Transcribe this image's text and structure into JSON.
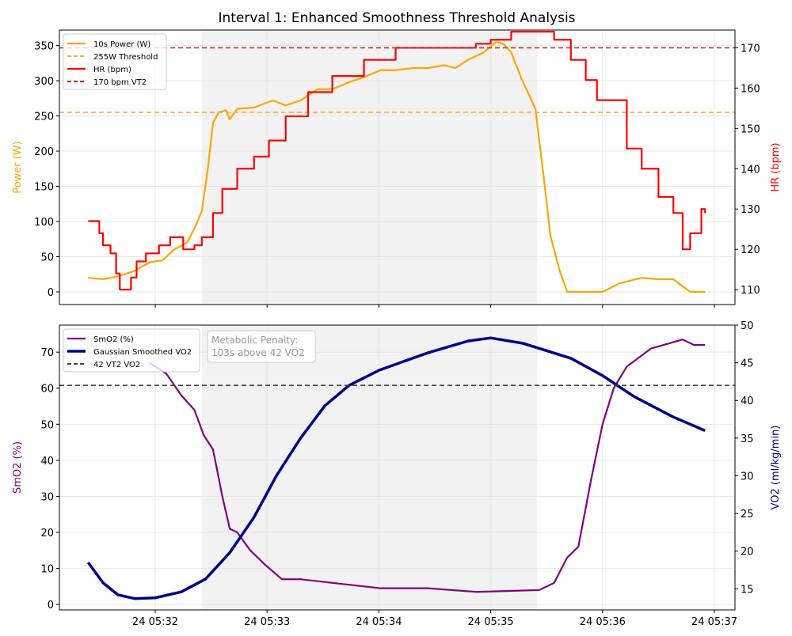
{
  "chart_data": [
    {
      "type": "line",
      "title": "Interval 1: Enhanced Smoothness Threshold Analysis",
      "ylabel": "Power (W)",
      "ylabel_right": "HR (bpm)",
      "ylim": [
        -18,
        372
      ],
      "ylim_right": [
        106.3,
        174.4
      ],
      "yticks": [
        0,
        50,
        100,
        150,
        200,
        250,
        300,
        350
      ],
      "yticks_right": [
        110,
        120,
        130,
        140,
        150,
        160,
        170
      ],
      "grid": true,
      "legend": "top-left",
      "shaded_interval": [
        "05:32:25",
        "05:35:25"
      ],
      "series": [
        {
          "name": "10s Power (W)",
          "axis": "left",
          "color": "#FFA500",
          "x": [
            "05:31:24",
            "05:31:32",
            "05:31:40",
            "05:31:49",
            "05:31:57",
            "05:32:04",
            "05:32:10",
            "05:32:17",
            "05:32:21",
            "05:32:25",
            "05:32:28",
            "05:32:31",
            "05:32:34",
            "05:32:38",
            "05:32:40",
            "05:32:44",
            "05:32:53",
            "05:33:03",
            "05:33:10",
            "05:33:18",
            "05:33:27",
            "05:33:35",
            "05:33:44",
            "05:33:52",
            "05:34:01",
            "05:34:09",
            "05:34:18",
            "05:34:26",
            "05:34:35",
            "05:34:41",
            "05:34:48",
            "05:34:56",
            "05:35:03",
            "05:35:07",
            "05:35:11",
            "05:35:17",
            "05:35:24",
            "05:35:29",
            "05:35:32",
            "05:35:37",
            "05:35:41",
            "05:36:00",
            "05:36:09",
            "05:36:21",
            "05:36:30",
            "05:36:38",
            "05:36:47",
            "05:36:55"
          ],
          "y": [
            20,
            18,
            22,
            30,
            42,
            45,
            60,
            70,
            90,
            115,
            170,
            240,
            255,
            258,
            245,
            260,
            262,
            272,
            265,
            272,
            288,
            288,
            298,
            305,
            315,
            315,
            318,
            318,
            322,
            318,
            330,
            340,
            355,
            352,
            340,
            300,
            260,
            150,
            80,
            30,
            0,
            0,
            12,
            20,
            18,
            18,
            0,
            0
          ]
        },
        {
          "name": "255W Threshold",
          "axis": "left",
          "style": "dashed",
          "color": "#FFAA44",
          "value": 255
        },
        {
          "name": "HR (bpm)",
          "axis": "right",
          "color": "#FF0000",
          "step": true,
          "x": [
            "05:31:24",
            "05:31:30",
            "05:31:32",
            "05:31:36",
            "05:31:39",
            "05:31:41",
            "05:31:44",
            "05:31:47",
            "05:31:50",
            "05:31:55",
            "05:32:02",
            "05:32:08",
            "05:32:12",
            "05:32:15",
            "05:32:21",
            "05:32:25",
            "05:32:31",
            "05:32:36",
            "05:32:44",
            "05:32:53",
            "05:33:01",
            "05:33:10",
            "05:33:22",
            "05:33:35",
            "05:33:52",
            "05:34:09",
            "05:34:52",
            "05:35:00",
            "05:35:11",
            "05:35:26",
            "05:35:34",
            "05:35:43",
            "05:35:51",
            "05:35:57",
            "05:36:13",
            "05:36:21",
            "05:36:30",
            "05:36:38",
            "05:36:43",
            "05:36:47",
            "05:36:53",
            "05:36:55"
          ],
          "y": [
            127,
            124,
            121,
            119,
            114,
            110,
            110,
            113,
            117,
            119,
            121,
            123,
            123,
            120,
            121,
            123,
            129,
            135,
            140,
            143,
            147,
            153,
            159,
            163,
            167,
            170,
            171,
            172,
            174,
            174,
            172,
            167,
            162,
            157,
            145,
            140,
            133,
            129,
            120,
            124,
            130,
            129
          ]
        },
        {
          "name": "170 bpm VT2",
          "axis": "right",
          "style": "dashed",
          "color": "#B03A3A",
          "value": 170
        }
      ]
    },
    {
      "type": "line",
      "ylabel": "SmO2 (%)",
      "ylabel_right": "VO2 (ml/kg/min)",
      "ylim": [
        -1.5,
        77.5
      ],
      "ylim_right": [
        12.2,
        50
      ],
      "yticks": [
        0,
        10,
        20,
        30,
        40,
        50,
        60,
        70
      ],
      "yticks_right": [
        15,
        20,
        25,
        30,
        35,
        40,
        45,
        50
      ],
      "xticks": [
        "24 05:32",
        "24 05:33",
        "24 05:34",
        "24 05:35",
        "24 05:36",
        "24 05:37"
      ],
      "grid": true,
      "legend": "top-left",
      "annotation": [
        "Metabolic Penalty:",
        "103s above 42 VO2"
      ],
      "shaded_interval": [
        "05:32:25",
        "05:35:25"
      ],
      "series": [
        {
          "name": "SmO2 (%)",
          "axis": "left",
          "color": "#800080",
          "x": [
            "05:31:57",
            "05:32:06",
            "05:32:14",
            "05:32:21",
            "05:32:26",
            "05:32:31",
            "05:32:36",
            "05:32:40",
            "05:32:44",
            "05:32:51",
            "05:32:59",
            "05:33:08",
            "05:33:18",
            "05:33:35",
            "05:34:01",
            "05:34:26",
            "05:34:52",
            "05:35:26",
            "05:35:34",
            "05:35:41",
            "05:35:47",
            "05:35:54",
            "05:36:00",
            "05:36:06",
            "05:36:13",
            "05:36:26",
            "05:36:43",
            "05:36:49",
            "05:36:55"
          ],
          "y": [
            67,
            64,
            58,
            54,
            47,
            43,
            30,
            21,
            20,
            15,
            11,
            7,
            7,
            6,
            4.5,
            4.5,
            3.5,
            4,
            6,
            13,
            16,
            35,
            50,
            60,
            66,
            71,
            73.5,
            72,
            72
          ]
        },
        {
          "name": "Gaussian Smoothed VO2",
          "axis": "right",
          "color": "#00008B",
          "x": [
            "05:31:24",
            "05:31:32",
            "05:31:40",
            "05:31:49",
            "05:32:00",
            "05:32:14",
            "05:32:27",
            "05:32:40",
            "05:32:53",
            "05:33:05",
            "05:33:18",
            "05:33:31",
            "05:33:44",
            "05:34:00",
            "05:34:26",
            "05:34:48",
            "05:35:00",
            "05:35:17",
            "05:35:43",
            "05:36:00",
            "05:36:17",
            "05:36:38",
            "05:36:55"
          ],
          "y": [
            18.5,
            15.8,
            14.2,
            13.7,
            13.8,
            14.6,
            16.3,
            19.8,
            24.5,
            30,
            35,
            39.3,
            42,
            44,
            46.3,
            47.9,
            48.3,
            47.6,
            45.6,
            43.3,
            40.5,
            37.8,
            36
          ]
        },
        {
          "name": "42 VT2 VO2",
          "axis": "right",
          "style": "dashed",
          "color": "#444444",
          "value": 42
        }
      ]
    }
  ]
}
